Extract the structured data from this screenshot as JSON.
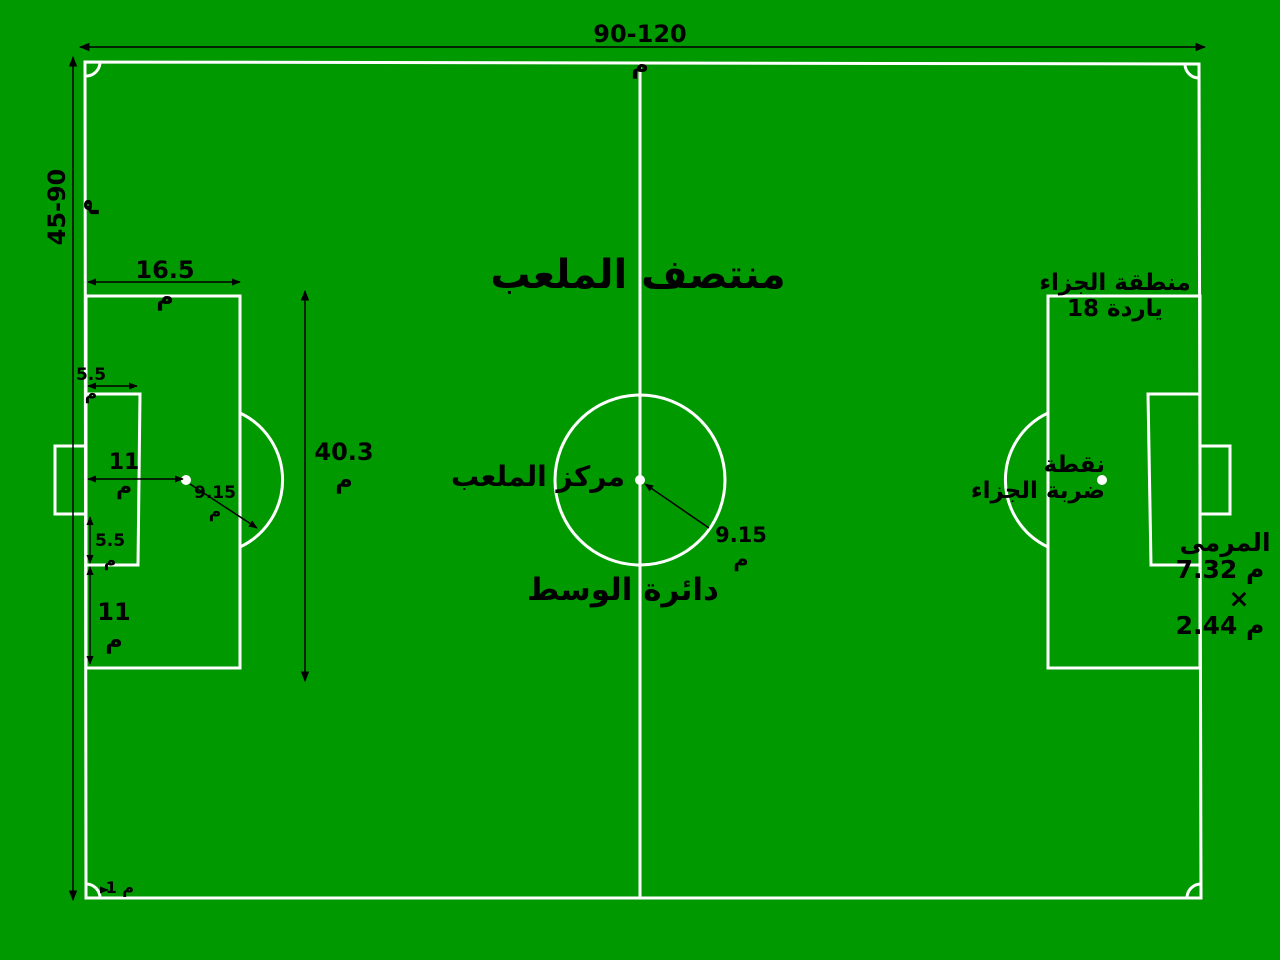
{
  "diagram": {
    "labels": {
      "length_value": "90-120",
      "length_unit": "م",
      "width_value": "45-90",
      "width_unit": "م",
      "penalty_area_depth_value": "16.5",
      "penalty_area_depth_unit": "م",
      "goal_area_depth_value": "5.5",
      "goal_area_depth_unit": "م",
      "penalty_mark_distance_value": "11",
      "penalty_mark_distance_unit": "م",
      "penalty_arc_radius_value": "9.15",
      "penalty_arc_radius_unit": "م",
      "goal_area_side_value": "5.5",
      "goal_area_side_unit": "م",
      "goal_post_offset_value": "11",
      "goal_post_offset_unit": "م",
      "penalty_area_width_value": "40.3",
      "penalty_area_width_unit": "م",
      "halfway_line": "منتصف الملعب",
      "center_mark": "مركز الملعب",
      "center_radius_value": "9.15",
      "center_radius_unit": "م",
      "center_circle": "دائرة الوسط",
      "penalty_area_line1": "منطقة الجزاء",
      "penalty_area_line2": "18 ياردة",
      "penalty_spot_line1": "نقطة",
      "penalty_spot_line2": "ضربة الجزاء",
      "goal_title": "المرمى",
      "goal_width": "7.32 م",
      "goal_times": "×",
      "goal_height": "2.44 م",
      "corner_arc": "1 م"
    },
    "colors": {
      "field": "#009900",
      "lines": "#ffffff",
      "text": "#000000"
    }
  }
}
